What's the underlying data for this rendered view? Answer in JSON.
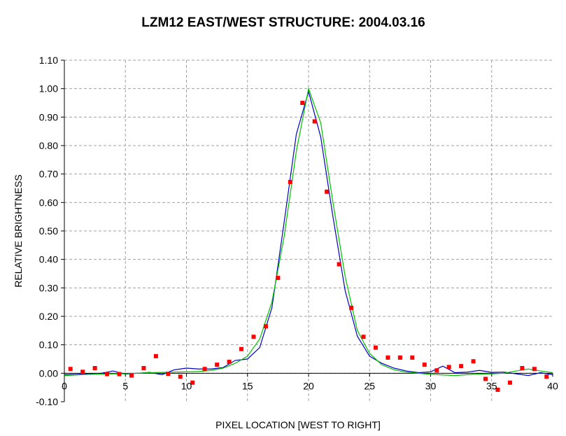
{
  "chart_data": {
    "type": "line",
    "title": "LZM12 EAST/WEST STRUCTURE: 2004.03.16",
    "xlabel": "PIXEL LOCATION [WEST TO RIGHT]",
    "ylabel": "RELATIVE BRIGHTNESS",
    "xlim": [
      0,
      40
    ],
    "ylim": [
      -0.1,
      1.1
    ],
    "x_ticks": [
      "0",
      "5",
      "10",
      "15",
      "20",
      "25",
      "30",
      "35",
      "40"
    ],
    "y_ticks": [
      "-0.10",
      "0.00",
      "0.10",
      "0.20",
      "0.30",
      "0.40",
      "0.50",
      "0.60",
      "0.70",
      "0.80",
      "0.90",
      "1.00",
      "1.10"
    ],
    "grid": true,
    "legend": "none",
    "series": [
      {
        "style": "markers",
        "color": "#ff0000",
        "x": [
          0.5,
          1.5,
          2.5,
          3.5,
          4.5,
          5.5,
          6.5,
          7.5,
          8.5,
          9.5,
          10.5,
          11.5,
          12.5,
          13.5,
          14.5,
          15.5,
          16.5,
          17.5,
          18.5,
          19.5,
          20.5,
          21.5,
          22.5,
          23.5,
          24.5,
          25.5,
          26.5,
          27.5,
          28.5,
          29.5,
          30.5,
          31.5,
          32.5,
          33.5,
          34.5,
          35.5,
          36.5,
          37.5,
          38.5,
          39.5
        ],
        "values": [
          0.015,
          0.005,
          0.018,
          -0.003,
          -0.003,
          -0.008,
          0.018,
          0.06,
          -0.002,
          -0.012,
          -0.033,
          0.015,
          0.03,
          0.04,
          0.085,
          0.128,
          0.165,
          0.335,
          0.672,
          0.95,
          0.885,
          0.638,
          0.383,
          0.23,
          0.128,
          0.09,
          0.055,
          0.055,
          0.055,
          0.03,
          0.01,
          0.022,
          0.025,
          0.042,
          -0.02,
          -0.058,
          -0.033,
          0.018,
          0.015,
          -0.012
        ]
      },
      {
        "style": "line",
        "color": "#0000c0",
        "x": [
          0,
          1,
          2,
          3,
          4,
          5,
          6,
          7,
          8,
          9,
          10,
          11,
          12,
          13,
          14,
          15,
          16,
          17,
          18,
          19,
          20,
          21,
          22,
          23,
          24,
          25,
          26,
          27,
          28,
          29,
          30,
          31,
          32,
          33,
          34,
          35,
          36,
          37,
          38,
          39,
          40
        ],
        "values": [
          -0.005,
          -0.004,
          -0.002,
          0.0,
          0.008,
          -0.003,
          0.0,
          0.003,
          -0.005,
          0.012,
          0.018,
          0.015,
          0.015,
          0.02,
          0.045,
          0.05,
          0.09,
          0.23,
          0.53,
          0.84,
          0.99,
          0.83,
          0.55,
          0.29,
          0.13,
          0.06,
          0.035,
          0.018,
          0.008,
          0.002,
          0.005,
          0.025,
          0.002,
          0.004,
          0.01,
          0.003,
          0.004,
          -0.002,
          -0.008,
          0.002,
          -0.005
        ]
      },
      {
        "style": "line",
        "color": "#00c000",
        "x": [
          0,
          1,
          2,
          3,
          4,
          5,
          6,
          7,
          8,
          9,
          10,
          11,
          12,
          13,
          14,
          15,
          16,
          17,
          18,
          19,
          20,
          21,
          22,
          23,
          24,
          25,
          26,
          27,
          28,
          29,
          30,
          31,
          32,
          33,
          34,
          35,
          36,
          37,
          38,
          39,
          40
        ],
        "values": [
          -0.008,
          -0.006,
          -0.004,
          -0.003,
          -0.002,
          -0.002,
          0.0,
          0.002,
          0.003,
          0.004,
          0.005,
          0.006,
          0.01,
          0.018,
          0.035,
          0.06,
          0.12,
          0.25,
          0.48,
          0.78,
          1.0,
          0.88,
          0.6,
          0.34,
          0.15,
          0.07,
          0.03,
          0.012,
          0.004,
          0.0,
          -0.004,
          -0.006,
          -0.008,
          -0.005,
          -0.003,
          -0.002,
          0.0,
          0.008,
          0.015,
          0.008,
          0.002
        ]
      }
    ]
  }
}
